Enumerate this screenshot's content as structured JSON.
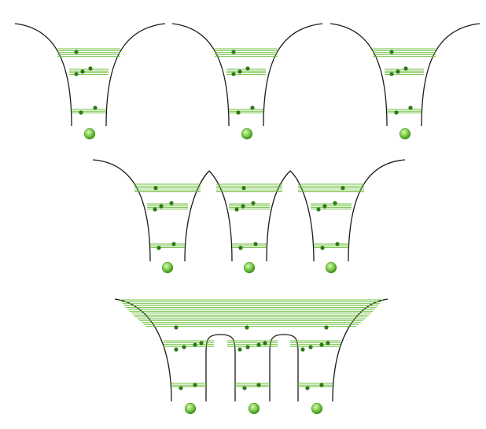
{
  "colors": {
    "background": "#ffffff",
    "well_wall": "#1a1a1a",
    "energy_level": "#6dbf3e",
    "electron": "#2e7a14",
    "nucleus_center": "#c9f0a8",
    "nucleus_edge": "#4a9a22"
  },
  "icons": {
    "nucleus": "green-sphere-icon",
    "electron": "dot-icon"
  },
  "rows": [
    {
      "name": "isolated-atoms",
      "well_count": 3,
      "merged": false
    },
    {
      "name": "weakly-coupled-atoms",
      "well_count": 3,
      "merged": false
    },
    {
      "name": "strongly-coupled-atoms",
      "well_count": 3,
      "merged": true
    }
  ]
}
